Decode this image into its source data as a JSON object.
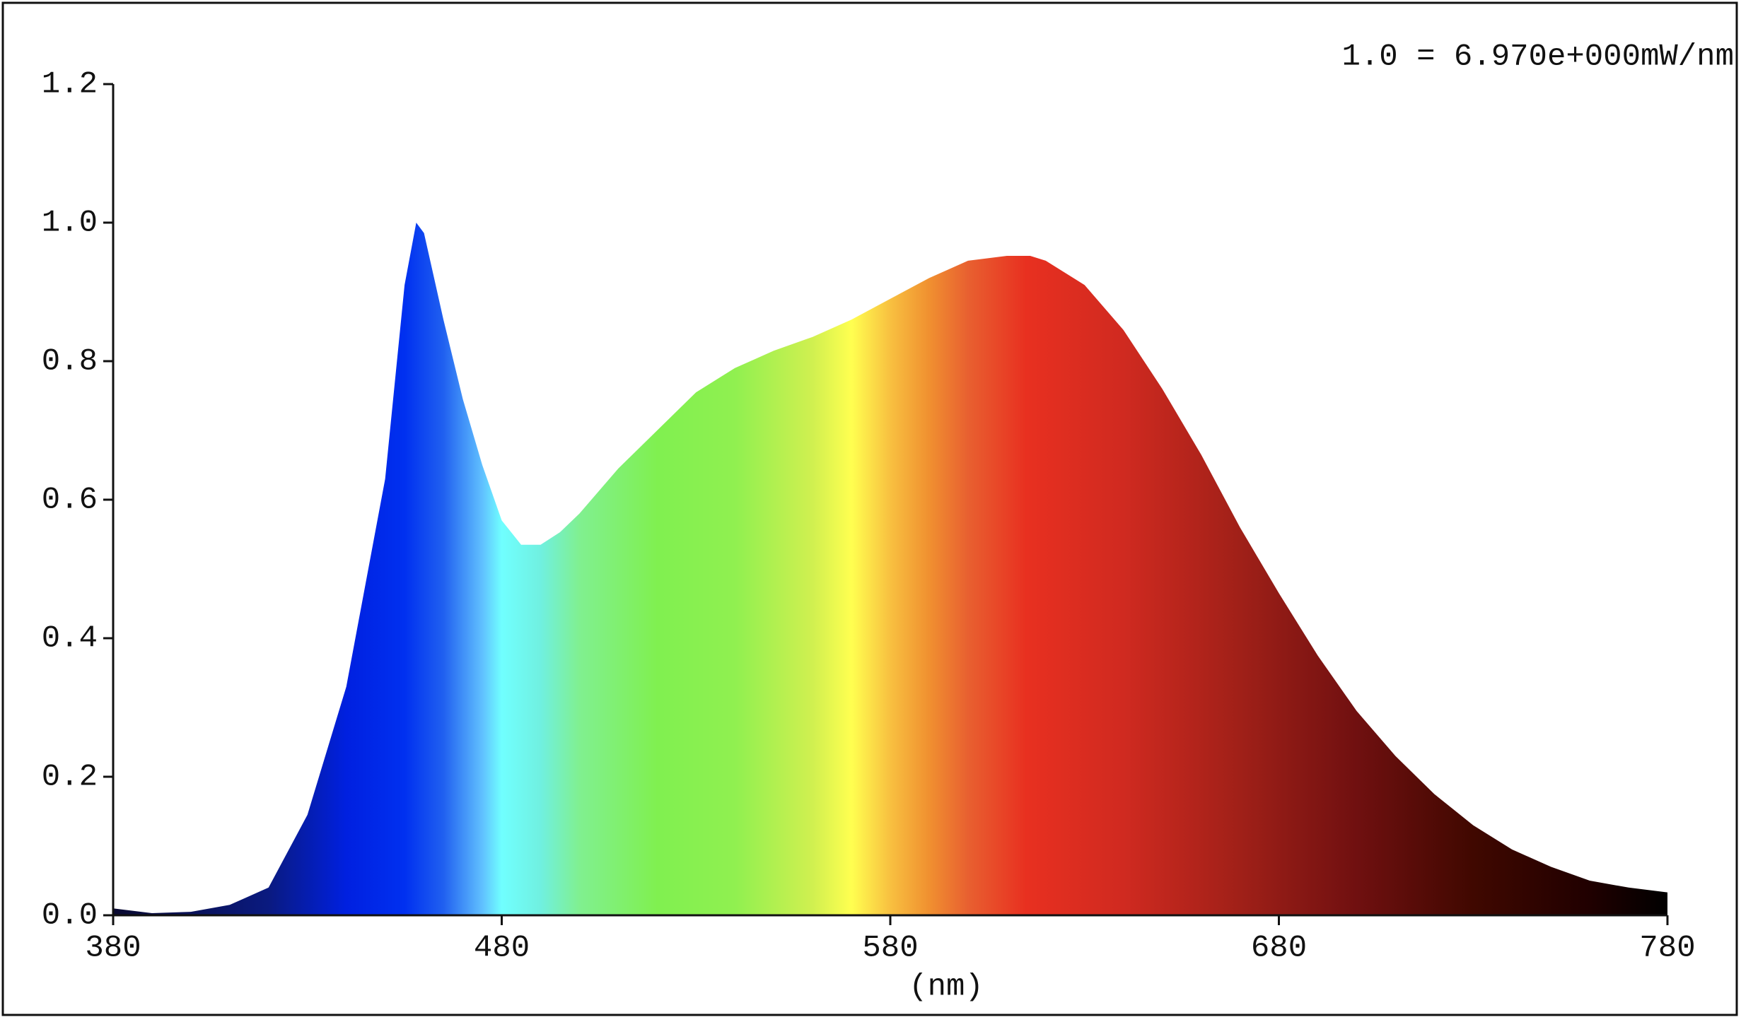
{
  "chart_data": {
    "type": "area",
    "annotation": "1.0 = 6.970e+000mW/nm",
    "x_label": "(nm)",
    "x": [
      380,
      390,
      400,
      410,
      420,
      430,
      440,
      450,
      455,
      458,
      460,
      465,
      470,
      475,
      480,
      485,
      490,
      495,
      500,
      510,
      520,
      530,
      540,
      550,
      560,
      570,
      580,
      590,
      600,
      610,
      616,
      620,
      630,
      640,
      650,
      660,
      670,
      680,
      690,
      700,
      710,
      720,
      730,
      740,
      750,
      760,
      770,
      780
    ],
    "values": [
      0.01,
      0.003,
      0.005,
      0.015,
      0.04,
      0.145,
      0.33,
      0.63,
      0.91,
      1.0,
      0.985,
      0.86,
      0.745,
      0.65,
      0.57,
      0.535,
      0.535,
      0.553,
      0.58,
      0.645,
      0.7,
      0.755,
      0.79,
      0.815,
      0.835,
      0.86,
      0.89,
      0.92,
      0.945,
      0.952,
      0.952,
      0.945,
      0.91,
      0.845,
      0.76,
      0.665,
      0.56,
      0.465,
      0.375,
      0.295,
      0.23,
      0.175,
      0.13,
      0.095,
      0.07,
      0.05,
      0.04,
      0.033
    ],
    "gradient": [
      {
        "x": 380,
        "color": "#0a0a30"
      },
      {
        "x": 420,
        "color": "#0a1a80"
      },
      {
        "x": 440,
        "color": "#0020e0"
      },
      {
        "x": 455,
        "color": "#0030f0"
      },
      {
        "x": 465,
        "color": "#2060f0"
      },
      {
        "x": 475,
        "color": "#60c0ff"
      },
      {
        "x": 480,
        "color": "#70ffff"
      },
      {
        "x": 490,
        "color": "#70f0e0"
      },
      {
        "x": 500,
        "color": "#80f090"
      },
      {
        "x": 520,
        "color": "#80f050"
      },
      {
        "x": 540,
        "color": "#90f050"
      },
      {
        "x": 560,
        "color": "#d0f050"
      },
      {
        "x": 570,
        "color": "#ffff50"
      },
      {
        "x": 580,
        "color": "#f8c040"
      },
      {
        "x": 590,
        "color": "#f09030"
      },
      {
        "x": 600,
        "color": "#e86030"
      },
      {
        "x": 615,
        "color": "#e83020"
      },
      {
        "x": 640,
        "color": "#d02a20"
      },
      {
        "x": 670,
        "color": "#a02018"
      },
      {
        "x": 700,
        "color": "#701010"
      },
      {
        "x": 730,
        "color": "#400800"
      },
      {
        "x": 760,
        "color": "#200000"
      },
      {
        "x": 780,
        "color": "#000000"
      }
    ],
    "xlim": [
      380,
      780
    ],
    "xticks": [
      380,
      480,
      580,
      680,
      780
    ],
    "ylim": [
      0,
      1.2
    ],
    "yticks": [
      {
        "value": 0,
        "label": "0.0"
      },
      0.2,
      0.4,
      0.6,
      0.8,
      {
        "value": 1,
        "label": "1.0"
      },
      1.2
    ]
  }
}
